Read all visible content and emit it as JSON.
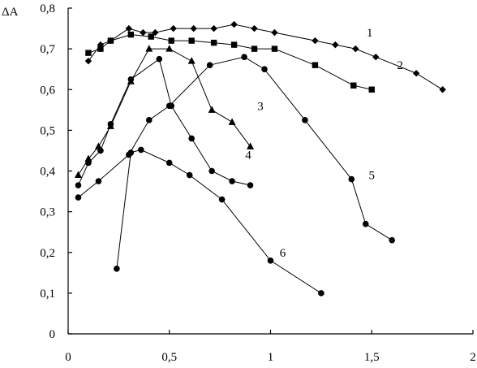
{
  "chart_data": {
    "type": "line",
    "title": "",
    "xlabel": "",
    "ylabel": "ΔA",
    "xlim": [
      0,
      2
    ],
    "ylim": [
      0,
      0.8
    ],
    "grid": false,
    "legend": "none",
    "x_ticks": [
      {
        "value": 0,
        "label": "0"
      },
      {
        "value": 0.5,
        "label": "0,5"
      },
      {
        "value": 1,
        "label": "1"
      },
      {
        "value": 1.5,
        "label": "1,5"
      },
      {
        "value": 2,
        "label": "2"
      }
    ],
    "y_ticks": [
      {
        "value": 0,
        "label": "0"
      },
      {
        "value": 0.1,
        "label": "0,1"
      },
      {
        "value": 0.2,
        "label": "0,2"
      },
      {
        "value": 0.3,
        "label": "0,3"
      },
      {
        "value": 0.4,
        "label": "0,4"
      },
      {
        "value": 0.5,
        "label": "0,5"
      },
      {
        "value": 0.6,
        "label": "0,6"
      },
      {
        "value": 0.7,
        "label": "0,7"
      },
      {
        "value": 0.8,
        "label": "0,8"
      }
    ],
    "series": [
      {
        "label": "1",
        "marker": "diamond",
        "label_at": [
          1.49,
          0.74
        ],
        "points": [
          [
            0.1,
            0.67
          ],
          [
            0.16,
            0.71
          ],
          [
            0.21,
            0.72
          ],
          [
            0.3,
            0.75
          ],
          [
            0.37,
            0.74
          ],
          [
            0.43,
            0.74
          ],
          [
            0.52,
            0.75
          ],
          [
            0.62,
            0.75
          ],
          [
            0.72,
            0.75
          ],
          [
            0.82,
            0.76
          ],
          [
            0.92,
            0.75
          ],
          [
            1.02,
            0.74
          ],
          [
            1.22,
            0.72
          ],
          [
            1.32,
            0.71
          ],
          [
            1.42,
            0.7
          ],
          [
            1.52,
            0.68
          ],
          [
            1.72,
            0.64
          ],
          [
            1.85,
            0.6
          ]
        ]
      },
      {
        "label": "2",
        "marker": "square",
        "label_at": [
          1.64,
          0.66
        ],
        "points": [
          [
            0.1,
            0.69
          ],
          [
            0.16,
            0.7
          ],
          [
            0.21,
            0.72
          ],
          [
            0.31,
            0.735
          ],
          [
            0.41,
            0.73
          ],
          [
            0.51,
            0.72
          ],
          [
            0.61,
            0.72
          ],
          [
            0.72,
            0.715
          ],
          [
            0.82,
            0.71
          ],
          [
            0.92,
            0.7
          ],
          [
            1.02,
            0.7
          ],
          [
            1.22,
            0.66
          ],
          [
            1.41,
            0.61
          ],
          [
            1.5,
            0.6
          ]
        ]
      },
      {
        "label": "3",
        "marker": "triangle",
        "label_at": [
          0.95,
          0.56
        ],
        "points": [
          [
            0.05,
            0.39
          ],
          [
            0.1,
            0.43
          ],
          [
            0.15,
            0.46
          ],
          [
            0.21,
            0.51
          ],
          [
            0.31,
            0.62
          ],
          [
            0.4,
            0.7
          ],
          [
            0.5,
            0.7
          ],
          [
            0.61,
            0.67
          ],
          [
            0.71,
            0.55
          ],
          [
            0.81,
            0.52
          ],
          [
            0.9,
            0.46
          ]
        ]
      },
      {
        "label": "4",
        "marker": "circle",
        "label_at": [
          0.89,
          0.44
        ],
        "points": [
          [
            0.05,
            0.365
          ],
          [
            0.1,
            0.42
          ],
          [
            0.16,
            0.45
          ],
          [
            0.21,
            0.515
          ],
          [
            0.31,
            0.625
          ],
          [
            0.45,
            0.675
          ],
          [
            0.51,
            0.56
          ],
          [
            0.61,
            0.48
          ],
          [
            0.71,
            0.4
          ],
          [
            0.81,
            0.375
          ],
          [
            0.9,
            0.365
          ]
        ]
      },
      {
        "label": "5",
        "marker": "circle",
        "label_at": [
          1.5,
          0.39
        ],
        "points": [
          [
            0.05,
            0.335
          ],
          [
            0.15,
            0.375
          ],
          [
            0.3,
            0.44
          ],
          [
            0.4,
            0.525
          ],
          [
            0.5,
            0.56
          ],
          [
            0.7,
            0.66
          ],
          [
            0.87,
            0.68
          ],
          [
            0.97,
            0.65
          ],
          [
            1.17,
            0.525
          ],
          [
            1.4,
            0.38
          ],
          [
            1.47,
            0.27
          ],
          [
            1.6,
            0.23
          ]
        ]
      },
      {
        "label": "6",
        "marker": "circle",
        "label_at": [
          1.06,
          0.2
        ],
        "points": [
          [
            0.24,
            0.16
          ],
          [
            0.31,
            0.445
          ],
          [
            0.36,
            0.452
          ],
          [
            0.5,
            0.42
          ],
          [
            0.6,
            0.39
          ],
          [
            0.76,
            0.33
          ],
          [
            1.0,
            0.18
          ],
          [
            1.25,
            0.1
          ]
        ]
      }
    ]
  }
}
